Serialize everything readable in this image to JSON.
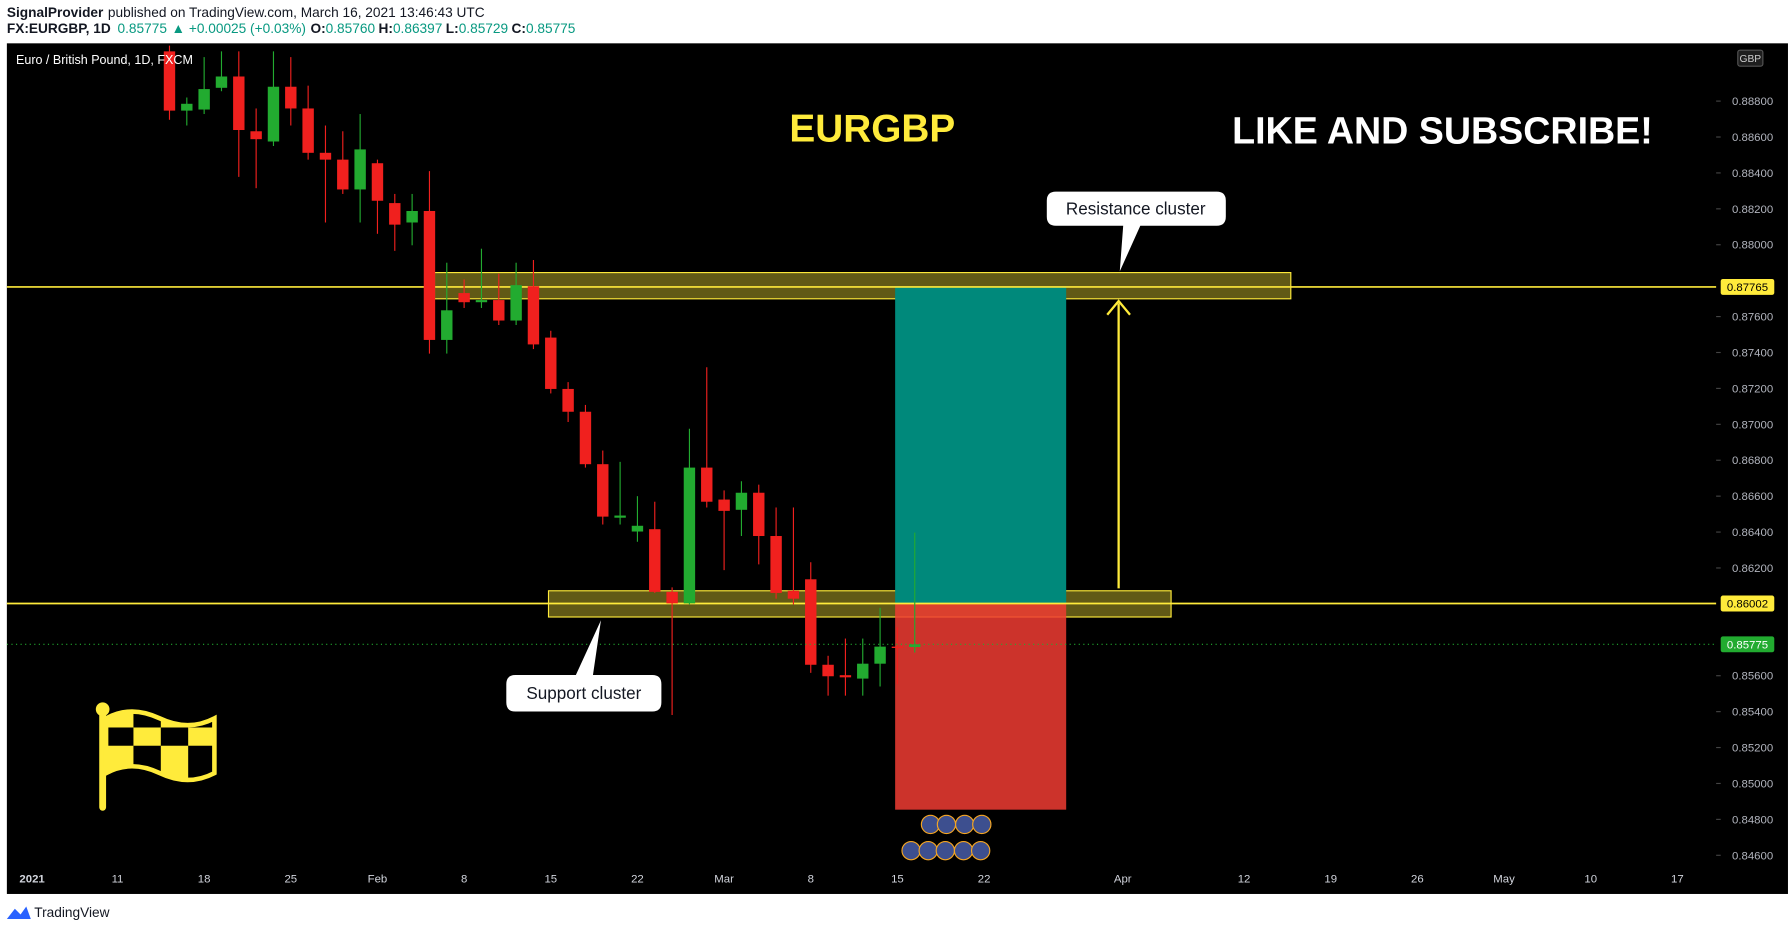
{
  "header": {
    "author": "SignalProvider",
    "published": "published on TradingView.com, March 16, 2021 13:46:43 UTC",
    "symbol": "FX:EURGBP, 1D",
    "last": "0.85775",
    "change": "▲ +0.00025 (+0.03%)",
    "o_label": "O:",
    "o": "0.85760",
    "h_label": "H:",
    "h": "0.86397",
    "l_label": "L:",
    "l": "0.85729",
    "c_label": "C:",
    "c": "0.85775",
    "brand": "TradingView"
  },
  "chart_data": {
    "type": "candlestick",
    "title": "Euro / British Pound, 1D, FXCM",
    "symbol_title": "EURGBP",
    "banner": "LIKE AND SUBSCRIBE!",
    "currency": "GBP",
    "up_color": "#22ab30",
    "down_color": "#f0201e",
    "categories": [
      "2021",
      null,
      null,
      null,
      null,
      null,
      "11",
      null,
      null,
      null,
      null,
      "18",
      null,
      null,
      null,
      null,
      "25",
      null,
      null,
      null,
      null,
      "Feb",
      null,
      null,
      null,
      null,
      "8",
      null,
      null,
      null,
      null,
      "15",
      null,
      null,
      null,
      null,
      "22",
      null,
      null,
      null,
      null,
      "Mar",
      null,
      null,
      null,
      null,
      "8",
      null,
      null,
      null,
      null,
      "15",
      null,
      null,
      null,
      null,
      "22",
      null,
      null,
      null,
      null,
      null,
      null,
      null,
      "Apr",
      null,
      null,
      null,
      null,
      null,
      null,
      "12",
      null,
      null,
      null,
      null,
      "19",
      null,
      null,
      null,
      null,
      "26",
      null,
      null,
      null,
      null,
      "May",
      null,
      null,
      null,
      null,
      "10",
      null,
      null,
      null,
      null,
      "17",
      null
    ],
    "open": [
      null,
      null,
      null,
      null,
      null,
      null,
      null,
      null,
      null,
      0.89077,
      0.88747,
      0.88753,
      0.88874,
      0.88937,
      0.88632,
      0.88575,
      0.8888,
      0.88759,
      0.88512,
      0.88474,
      0.88308,
      0.88454,
      0.88232,
      0.88124,
      0.88188,
      0.8747,
      0.87731,
      0.8768,
      0.87692,
      0.87578,
      0.87769,
      0.87483,
      0.87197,
      0.8707,
      0.86778,
      0.8648,
      0.86403,
      0.86416,
      0.86067,
      0.86003,
      0.86759,
      0.86581,
      0.86524,
      0.86619,
      0.86378,
      0.86073,
      0.86137,
      0.85661,
      0.85603,
      0.85584,
      0.85667,
      0.85762,
      0.8576,
      null,
      null,
      null,
      null,
      null,
      null,
      null,
      null,
      null,
      null,
      null,
      null,
      null,
      null,
      null,
      null,
      null,
      null,
      null,
      null,
      null,
      null,
      null,
      null,
      null,
      null,
      null,
      null,
      null,
      null,
      null,
      null,
      null,
      null,
      null,
      null,
      null,
      null,
      null,
      null,
      null,
      null,
      null,
      null,
      null
    ],
    "high": [
      null,
      null,
      null,
      null,
      null,
      null,
      null,
      null,
      null,
      0.89109,
      0.8882,
      0.89045,
      0.89077,
      0.89077,
      0.88759,
      0.89077,
      0.89045,
      0.88886,
      0.88664,
      0.88632,
      0.88728,
      0.88474,
      0.88283,
      0.88283,
      0.8841,
      0.879,
      0.87807,
      0.87978,
      0.87839,
      0.879,
      0.87915,
      0.87521,
      0.87235,
      0.87108,
      0.86854,
      0.86791,
      0.866,
      0.86569,
      0.86092,
      0.86975,
      0.87318,
      0.86632,
      0.86683,
      0.86664,
      0.86537,
      0.86537,
      0.86232,
      0.85711,
      0.85807,
      0.85807,
      0.85978,
      0.8587,
      0.86397,
      null,
      null,
      null,
      null,
      null,
      null,
      null,
      null,
      null,
      null,
      null,
      null,
      null,
      null,
      null,
      null,
      null,
      null,
      null,
      null,
      null,
      null,
      null,
      null,
      null,
      null,
      null,
      null,
      null,
      null,
      null,
      null,
      null,
      null,
      null,
      null,
      null,
      null,
      null,
      null,
      null,
      null,
      null,
      null,
      null
    ],
    "low": [
      null,
      null,
      null,
      null,
      null,
      null,
      null,
      null,
      null,
      0.88696,
      0.88664,
      0.88728,
      0.88855,
      0.88378,
      0.88315,
      0.8855,
      0.88664,
      0.88474,
      0.88124,
      0.88283,
      0.88124,
      0.88061,
      0.87966,
      0.87997,
      0.87394,
      0.87394,
      0.87648,
      0.87648,
      0.87553,
      0.87553,
      0.87419,
      0.87172,
      0.87013,
      0.86759,
      0.86442,
      0.86442,
      0.86346,
      0.86061,
      0.85381,
      0.85997,
      0.86537,
      0.86188,
      0.86378,
      0.8622,
      0.86029,
      0.85997,
      0.85616,
      0.85489,
      0.85489,
      0.85489,
      0.8554,
      0.85553,
      0.85729,
      null,
      null,
      null,
      null,
      null,
      null,
      null,
      null,
      null,
      null,
      null,
      null,
      null,
      null,
      null,
      null,
      null,
      null,
      null,
      null,
      null,
      null,
      null,
      null,
      null,
      null,
      null,
      null,
      null,
      null,
      null,
      null,
      null,
      null,
      null,
      null,
      null,
      null,
      null,
      null,
      null,
      null,
      null,
      null,
      null
    ],
    "close": [
      null,
      null,
      null,
      null,
      null,
      null,
      null,
      null,
      null,
      0.88747,
      0.88785,
      0.88867,
      0.88937,
      0.88639,
      0.88588,
      0.8888,
      0.88759,
      0.88512,
      0.88474,
      0.88308,
      0.88531,
      0.88245,
      0.88112,
      0.88188,
      0.8747,
      0.87635,
      0.8768,
      0.87692,
      0.87578,
      0.87775,
      0.87445,
      0.87197,
      0.8707,
      0.86778,
      0.86486,
      0.86492,
      0.86435,
      0.86067,
      0.86003,
      0.86759,
      0.86569,
      0.86518,
      0.86619,
      0.86378,
      0.86061,
      0.86029,
      0.85661,
      0.85597,
      0.85591,
      0.85667,
      0.85762,
      0.85756,
      0.85775,
      null,
      null,
      null,
      null,
      null,
      null,
      null,
      null,
      null,
      null,
      null,
      null,
      null,
      null,
      null,
      null,
      null,
      null,
      null,
      null,
      null,
      null,
      null,
      null,
      null,
      null,
      null,
      null,
      null,
      null,
      null,
      null,
      null,
      null,
      null,
      null,
      null,
      null,
      null,
      null,
      null,
      null,
      null,
      null,
      null
    ],
    "ylim": [
      0.84537,
      0.89109
    ],
    "yticks": [
      {
        "value": 0.888,
        "label": "0.88800"
      },
      {
        "value": 0.886,
        "label": "0.88600"
      },
      {
        "value": 0.884,
        "label": "0.88400"
      },
      {
        "value": 0.882,
        "label": "0.88200"
      },
      {
        "value": 0.88,
        "label": "0.88000"
      },
      {
        "value": 0.876,
        "label": "0.87600"
      },
      {
        "value": 0.874,
        "label": "0.87400"
      },
      {
        "value": 0.872,
        "label": "0.87200"
      },
      {
        "value": 0.87,
        "label": "0.87000"
      },
      {
        "value": 0.868,
        "label": "0.86800"
      },
      {
        "value": 0.866,
        "label": "0.86600"
      },
      {
        "value": 0.864,
        "label": "0.86400"
      },
      {
        "value": 0.862,
        "label": "0.86200"
      },
      {
        "value": 0.856,
        "label": "0.85600"
      },
      {
        "value": 0.854,
        "label": "0.85400"
      },
      {
        "value": 0.852,
        "label": "0.85200"
      },
      {
        "value": 0.85,
        "label": "0.85000"
      },
      {
        "value": 0.848,
        "label": "0.84800"
      },
      {
        "value": 0.846,
        "label": "0.84600"
      }
    ],
    "grid": false,
    "levels": [
      0.87765,
      0.86002
    ],
    "level_color": "#ffeb3b",
    "last_price": 0.85775,
    "resistance": {
      "label": "Resistance cluster",
      "top": 0.87845,
      "bottom": 0.87699
    },
    "support": {
      "label": "Support cluster",
      "top": 0.86073,
      "bottom": 0.85927
    },
    "position": {
      "target": 0.87765,
      "entry": 0.86002,
      "stop": 0.84854
    }
  }
}
